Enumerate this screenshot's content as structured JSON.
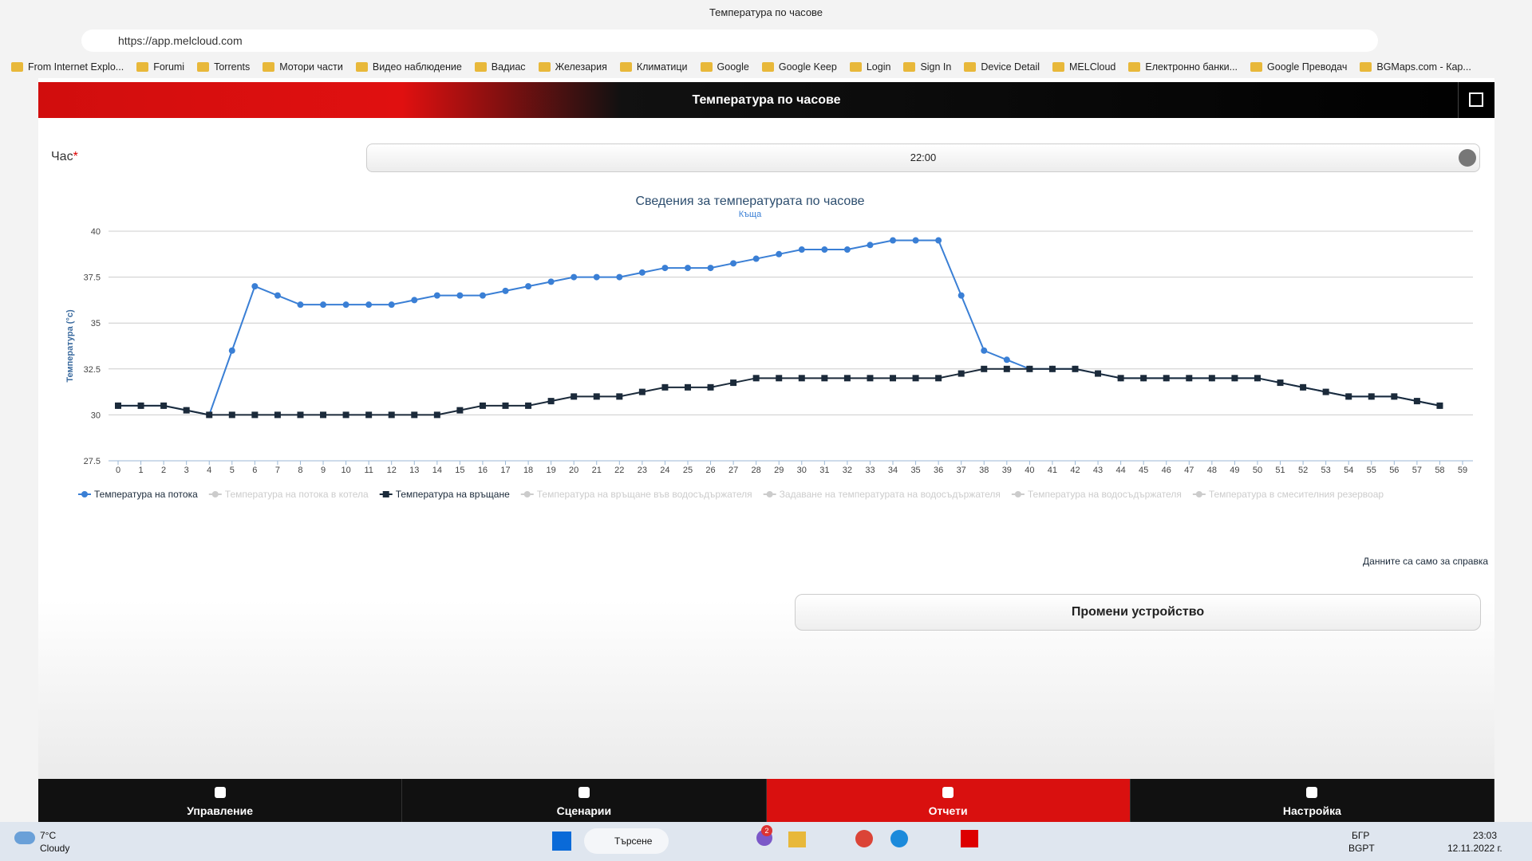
{
  "browser": {
    "tab_title": "Температура по часове",
    "url": "https://app.melcloud.com",
    "bookmarks": [
      "From Internet Explo...",
      "Forumi",
      "Torrents",
      "Мотори части",
      "Видео наблюдение",
      "Вадиас",
      "Железария",
      "Климатици",
      "Google",
      "Google Keep",
      "Login",
      "Sign In",
      "Device Detail",
      "MELCloud",
      "Електронно банки...",
      "Google Преводач",
      "BGMaps.com - Кар..."
    ]
  },
  "app": {
    "header_title": "Температура по часове",
    "hour_label": "Час",
    "required_mark": "*",
    "hour_value": "22:00",
    "note": "Данните са само за справка",
    "button": "Промени устройство",
    "nav": [
      "Управление",
      "Сценарии",
      "Отчети",
      "Настройка"
    ],
    "active_nav": 2
  },
  "chart_data": {
    "type": "line",
    "title": "Сведения за температурата по часове",
    "subtitle": "Къща",
    "y_label": "Температура (°c)",
    "x": [
      0,
      1,
      2,
      3,
      4,
      5,
      6,
      7,
      8,
      9,
      10,
      11,
      12,
      13,
      14,
      15,
      16,
      17,
      18,
      19,
      20,
      21,
      22,
      23,
      24,
      25,
      26,
      27,
      28,
      29,
      30,
      31,
      32,
      33,
      34,
      35,
      36,
      37,
      38,
      39,
      40,
      41,
      42,
      43,
      44,
      45,
      46,
      47,
      48,
      49,
      50,
      51,
      52,
      53,
      54,
      55,
      56,
      57,
      58,
      59
    ],
    "xlim": [
      0,
      59
    ],
    "ylim": [
      27.5,
      40
    ],
    "yticks": [
      27.5,
      30,
      32.5,
      35,
      37.5,
      40
    ],
    "grid": true,
    "series": [
      {
        "name": "Температура на потока",
        "color": "#3a7fd5",
        "marker": "circle",
        "visible": true,
        "values": [
          30.5,
          30.5,
          30.5,
          30.25,
          30,
          33.5,
          37,
          36.5,
          36,
          36,
          36,
          36,
          36,
          36.25,
          36.5,
          36.5,
          36.5,
          36.75,
          37,
          37.25,
          37.5,
          37.5,
          37.5,
          37.75,
          38,
          38,
          38,
          38.25,
          38.5,
          38.75,
          39,
          39,
          39,
          39.25,
          39.5,
          39.5,
          39.5,
          36.5,
          33.5,
          33,
          32.5,
          32.5,
          32.5,
          32.25,
          32,
          32,
          32,
          32,
          32,
          32,
          32,
          31.75,
          31.5,
          31.25,
          31,
          31,
          31,
          30.75,
          30.5,
          null
        ]
      },
      {
        "name": "Температура на потока в котела",
        "color": "#cccccc",
        "marker": "circle",
        "visible": false
      },
      {
        "name": "Температура на връщане",
        "color": "#1b2a3a",
        "marker": "square",
        "visible": true,
        "values": [
          30.5,
          30.5,
          30.5,
          30.25,
          30,
          30,
          30,
          30,
          30,
          30,
          30,
          30,
          30,
          30,
          30,
          30.25,
          30.5,
          30.5,
          30.5,
          30.75,
          31,
          31,
          31,
          31.25,
          31.5,
          31.5,
          31.5,
          31.75,
          32,
          32,
          32,
          32,
          32,
          32,
          32,
          32,
          32,
          32.25,
          32.5,
          32.5,
          32.5,
          32.5,
          32.5,
          32.25,
          32,
          32,
          32,
          32,
          32,
          32,
          32,
          31.75,
          31.5,
          31.25,
          31,
          31,
          31,
          30.75,
          30.5,
          null
        ]
      },
      {
        "name": "Температура на връщане във водосъдържателя",
        "color": "#cccccc",
        "marker": "triangle",
        "visible": false
      },
      {
        "name": "Задаване на температурата на водосъдържателя",
        "color": "#cccccc",
        "marker": "cross",
        "visible": false
      },
      {
        "name": "Температура на водосъдържателя",
        "color": "#cccccc",
        "marker": "circle",
        "visible": false
      },
      {
        "name": "Температура в смесителния резервоар",
        "color": "#cccccc",
        "marker": "cross",
        "visible": false
      }
    ]
  },
  "taskbar": {
    "temperature": "7°C",
    "weather": "Cloudy",
    "search": "Търсене",
    "badge": "2",
    "lang": "БГР",
    "layout": "BGPT",
    "time": "23:03",
    "date": "12.11.2022 г."
  }
}
